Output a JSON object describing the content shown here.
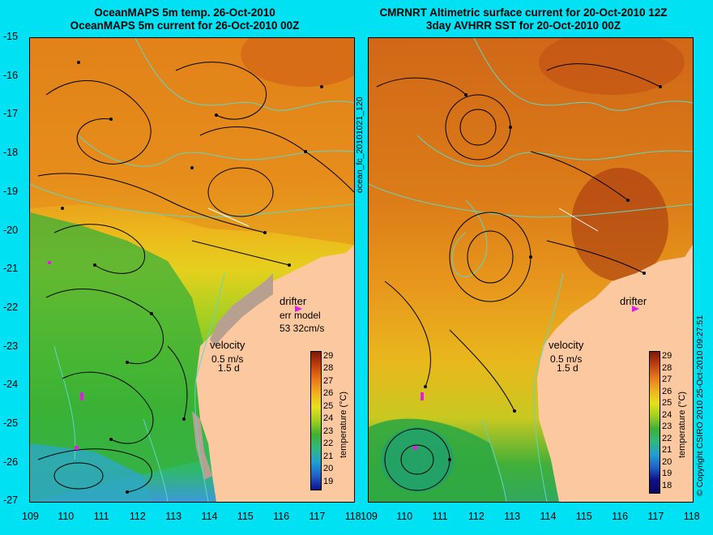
{
  "left_panel": {
    "title_line1": "OceanMAPS 5m temp. 26-Oct-2010",
    "title_line2": "OceanMAPS 5m current for 26-Oct-2010 00Z",
    "drifter_label": "drifter",
    "err_model_label": "err model",
    "err_model_value": "53 32cm/s",
    "velocity_label": "velocity",
    "velocity_scale": "0.5 m/s",
    "velocity_time": "1.5 d",
    "colorbar_title": "temperature (°C)",
    "colorbar_ticks": [
      "29",
      "28",
      "27",
      "26",
      "25",
      "24",
      "23",
      "22",
      "21",
      "20",
      "19"
    ]
  },
  "right_panel": {
    "title_line1": "CMRNRT Altimetric surface current for 20-Oct-2010 12Z",
    "title_line2": "3day AVHRR SST for 20-Oct-2010 00Z",
    "drifter_label": "drifter",
    "velocity_label": "velocity",
    "velocity_scale": "0.5 m/s",
    "velocity_time": "1.5 d",
    "colorbar_title": "temperature (°C)",
    "colorbar_ticks": [
      "29",
      "28",
      "27",
      "26",
      "25",
      "24",
      "23",
      "22",
      "21",
      "20",
      "19",
      "18"
    ]
  },
  "side_label": "ocean_fc_20101021_120",
  "copyright": "© Copyright CSIRO 2010   25-Oct-2010 09:27:51",
  "axes": {
    "lat_ticks": [
      "-15",
      "-16",
      "-17",
      "-18",
      "-19",
      "-20",
      "-21",
      "-22",
      "-23",
      "-24",
      "-25",
      "-26",
      "-27"
    ],
    "lon_ticks_left": [
      "109",
      "110",
      "111",
      "112",
      "113",
      "114",
      "115",
      "116",
      "117",
      "118"
    ],
    "lon_ticks_right": [
      "109",
      "110",
      "111",
      "112",
      "113",
      "114",
      "115",
      "116",
      "117",
      "118"
    ]
  },
  "colors": {
    "background": "#00e1f4",
    "land": "#fcc8a0",
    "coastline": "#5fd6c4",
    "drifter": "#e020e0"
  }
}
